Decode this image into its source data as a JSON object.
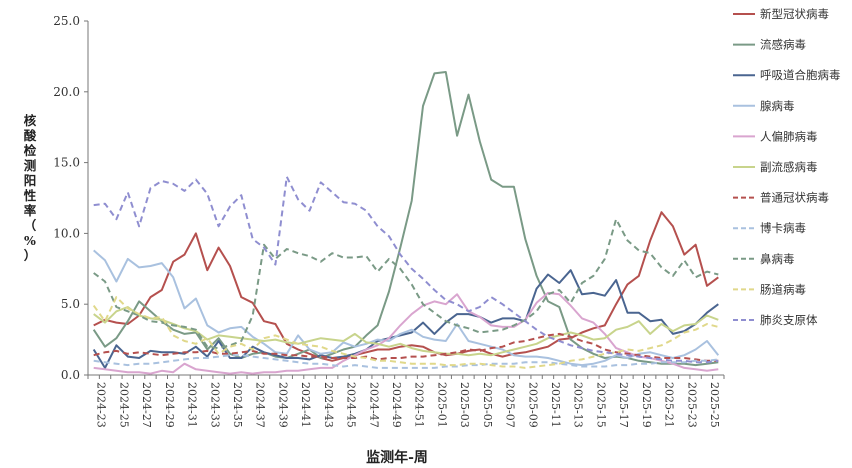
{
  "chart_data": {
    "type": "line",
    "xlabel": "监测年-周",
    "ylabel": "核酸检测阳性率（%）",
    "ylim": [
      0,
      25
    ],
    "yticks": [
      "0.0",
      "5.0",
      "10.0",
      "15.0",
      "20.0",
      "25.0"
    ],
    "grid": false,
    "legend_position": "right",
    "categories": [
      "2024-23",
      "2024-24",
      "2024-25",
      "2024-26",
      "2024-27",
      "2024-28",
      "2024-29",
      "2024-30",
      "2024-31",
      "2024-32",
      "2024-33",
      "2024-34",
      "2024-35",
      "2024-36",
      "2024-37",
      "2024-38",
      "2024-39",
      "2024-40",
      "2024-41",
      "2024-42",
      "2024-43",
      "2024-44",
      "2024-45",
      "2024-46",
      "2024-47",
      "2024-48",
      "2024-49",
      "2024-50",
      "2024-51",
      "2024-52",
      "2025-01",
      "2025-02",
      "2025-03",
      "2025-04",
      "2025-05",
      "2025-06",
      "2025-07",
      "2025-08",
      "2025-09",
      "2025-10",
      "2025-11",
      "2025-12",
      "2025-13",
      "2025-14",
      "2025-15",
      "2025-16",
      "2025-17",
      "2025-18",
      "2025-19",
      "2025-20",
      "2025-21",
      "2025-22",
      "2025-23",
      "2025-24",
      "2025-25",
      "2025-26"
    ],
    "xtick_labels": [
      "2024-23",
      "2024-25",
      "2024-27",
      "2024-29",
      "2024-31",
      "2024-33",
      "2024-35",
      "2024-37",
      "2024-39",
      "2024-41",
      "2024-43",
      "2024-45",
      "2024-47",
      "2024-49",
      "2024-51",
      "2025-01",
      "2025-03",
      "2025-05",
      "2025-07",
      "2025-09",
      "2025-11",
      "2025-13",
      "2025-15",
      "2025-17",
      "2025-19",
      "2025-21",
      "2025-23",
      "2025-25"
    ],
    "series": [
      {
        "name": "新型冠状病毒",
        "color": "#b5504e",
        "dash": "solid",
        "values": [
          3.5,
          3.9,
          3.7,
          3.6,
          4.2,
          5.5,
          6.0,
          8.0,
          8.5,
          10.0,
          7.4,
          9.0,
          7.7,
          5.5,
          5.1,
          3.8,
          3.6,
          2.2,
          1.8,
          1.5,
          1.2,
          1.0,
          1.2,
          1.4,
          1.6,
          1.8,
          1.8,
          2.0,
          2.1,
          2.0,
          1.6,
          1.4,
          1.5,
          1.7,
          1.8,
          1.5,
          1.3,
          1.5,
          1.6,
          1.8,
          2.0,
          2.5,
          2.6,
          3.0,
          3.3,
          3.5,
          5.0,
          6.4,
          7.0,
          9.5,
          11.5,
          10.5,
          8.5,
          9.2,
          6.3,
          6.9
        ]
      },
      {
        "name": "流感病毒",
        "color": "#7a9a86",
        "dash": "solid",
        "values": [
          3.2,
          2.0,
          2.6,
          3.8,
          5.2,
          4.5,
          3.8,
          3.2,
          2.9,
          3.0,
          1.8,
          2.6,
          1.5,
          1.2,
          1.5,
          1.6,
          1.3,
          1.2,
          1.5,
          1.8,
          1.2,
          1.5,
          1.8,
          2.0,
          2.8,
          3.5,
          5.9,
          9.0,
          12.3,
          19.0,
          21.3,
          21.4,
          16.9,
          19.8,
          16.5,
          13.8,
          13.3,
          13.3,
          9.6,
          7.0,
          5.2,
          4.8,
          2.5,
          1.9,
          1.5,
          1.2,
          1.3,
          1.2,
          1.0,
          0.9,
          0.8,
          0.8,
          0.8,
          0.7,
          0.8,
          0.9
        ]
      },
      {
        "name": "呼吸道合胞病毒",
        "color": "#4a6590",
        "dash": "solid",
        "values": [
          1.8,
          0.5,
          2.1,
          1.3,
          1.2,
          1.7,
          1.6,
          1.6,
          1.5,
          2.0,
          1.3,
          2.4,
          1.2,
          1.2,
          2.0,
          1.6,
          1.4,
          1.2,
          1.2,
          1.1,
          1.4,
          1.2,
          1.3,
          1.5,
          1.8,
          2.4,
          2.6,
          2.8,
          3.0,
          3.7,
          2.9,
          3.7,
          4.3,
          4.3,
          4.1,
          3.7,
          4.0,
          4.0,
          3.8,
          6.1,
          7.1,
          6.5,
          7.4,
          5.7,
          5.8,
          5.6,
          6.7,
          4.4,
          4.4,
          3.8,
          3.9,
          2.9,
          3.1,
          3.6,
          4.4,
          5.0
        ]
      },
      {
        "name": "腺病毒",
        "color": "#a9c1df",
        "dash": "solid",
        "values": [
          8.8,
          8.1,
          6.6,
          8.2,
          7.6,
          7.7,
          7.9,
          6.9,
          4.7,
          5.4,
          3.5,
          3.0,
          3.3,
          3.4,
          2.7,
          2.2,
          1.6,
          1.5,
          2.8,
          1.8,
          1.5,
          1.6,
          2.3,
          2.0,
          2.2,
          2.5,
          2.4,
          2.9,
          3.2,
          2.7,
          2.5,
          2.4,
          3.6,
          2.4,
          2.2,
          2.0,
          1.8,
          1.4,
          1.3,
          1.3,
          1.2,
          1.0,
          0.8,
          0.7,
          0.8,
          1.0,
          1.4,
          1.2,
          1.5,
          1.6,
          1.4,
          1.2,
          1.4,
          1.8,
          2.4,
          1.4
        ]
      },
      {
        "name": "人偏肺病毒",
        "color": "#d9a5cf",
        "dash": "solid",
        "values": [
          0.5,
          0.4,
          0.3,
          0.2,
          0.2,
          0.1,
          0.3,
          0.2,
          0.8,
          0.4,
          0.3,
          0.2,
          0.1,
          0.2,
          0.1,
          0.2,
          0.2,
          0.3,
          0.3,
          0.4,
          0.5,
          0.5,
          1.0,
          1.4,
          1.8,
          2.1,
          2.6,
          3.5,
          4.3,
          4.9,
          5.2,
          5.0,
          5.7,
          4.5,
          4.1,
          3.5,
          3.4,
          3.4,
          3.9,
          5.1,
          5.8,
          5.7,
          4.9,
          4.0,
          3.7,
          2.9,
          1.9,
          1.6,
          1.3,
          1.2,
          1.0,
          0.8,
          0.5,
          0.4,
          0.3,
          0.4
        ]
      },
      {
        "name": "副流感病毒",
        "color": "#c8d48c",
        "dash": "solid",
        "values": [
          4.3,
          3.7,
          4.5,
          4.8,
          4.2,
          4.0,
          3.9,
          3.6,
          3.3,
          3.1,
          2.5,
          2.8,
          2.7,
          2.6,
          2.5,
          2.4,
          2.5,
          2.3,
          2.2,
          2.4,
          2.6,
          2.5,
          2.4,
          2.9,
          2.3,
          2.2,
          2.0,
          2.2,
          1.9,
          1.7,
          1.6,
          1.5,
          1.5,
          1.4,
          1.5,
          1.4,
          1.6,
          1.8,
          2.0,
          2.2,
          2.6,
          2.8,
          3.0,
          2.8,
          2.5,
          2.6,
          3.2,
          3.4,
          3.8,
          2.9,
          3.6,
          3.1,
          3.5,
          3.6,
          4.2,
          3.9
        ]
      },
      {
        "name": "普通冠状病毒",
        "color": "#b5504e",
        "dash": "dashed",
        "values": [
          1.4,
          1.6,
          1.7,
          1.5,
          1.6,
          1.5,
          1.4,
          1.5,
          1.6,
          1.6,
          1.7,
          1.5,
          1.5,
          1.6,
          1.7,
          1.5,
          1.5,
          1.4,
          1.4,
          1.3,
          1.3,
          1.2,
          1.2,
          1.2,
          1.3,
          1.1,
          1.2,
          1.2,
          1.3,
          1.3,
          1.4,
          1.5,
          1.6,
          1.8,
          1.7,
          1.9,
          2.0,
          2.3,
          2.4,
          2.6,
          2.8,
          2.9,
          2.7,
          2.4,
          2.2,
          1.8,
          1.6,
          1.5,
          1.4,
          1.3,
          1.2,
          1.2,
          1.2,
          1.1,
          1.0,
          1.0
        ]
      },
      {
        "name": "博卡病毒",
        "color": "#a9c1df",
        "dash": "dashed",
        "values": [
          1.0,
          0.9,
          0.8,
          0.7,
          0.8,
          0.8,
          0.9,
          1.0,
          1.1,
          1.2,
          1.2,
          1.3,
          1.4,
          1.4,
          1.3,
          1.2,
          1.1,
          1.0,
          0.9,
          0.8,
          0.8,
          0.7,
          0.6,
          0.7,
          0.6,
          0.5,
          0.5,
          0.5,
          0.5,
          0.5,
          0.5,
          0.6,
          0.6,
          0.7,
          0.7,
          0.8,
          0.8,
          0.8,
          0.9,
          0.9,
          0.9,
          0.8,
          0.7,
          0.6,
          0.6,
          0.6,
          0.7,
          0.7,
          0.8,
          0.8,
          0.9,
          0.9,
          0.9,
          1.0,
          1.0,
          1.1
        ]
      },
      {
        "name": "鼻病毒",
        "color": "#7a9a86",
        "dash": "dashed",
        "values": [
          7.2,
          6.6,
          4.8,
          4.5,
          4.2,
          3.8,
          3.7,
          3.5,
          3.4,
          3.2,
          2.0,
          1.9,
          2.1,
          2.4,
          4.2,
          9.2,
          8.2,
          8.9,
          8.6,
          8.4,
          8.0,
          8.6,
          8.3,
          8.3,
          8.4,
          7.3,
          8.2,
          7.5,
          6.4,
          5.0,
          4.4,
          3.8,
          3.5,
          3.3,
          3.0,
          3.1,
          3.2,
          3.5,
          3.9,
          4.5,
          5.7,
          6.0,
          5.1,
          6.5,
          7.0,
          8.2,
          11.0,
          9.5,
          8.8,
          8.6,
          7.6,
          7.0,
          8.1,
          6.9,
          7.3,
          7.1
        ]
      },
      {
        "name": "肠道病毒",
        "color": "#e0d88a",
        "dash": "dashed",
        "values": [
          4.9,
          3.8,
          5.5,
          4.7,
          4.3,
          4.0,
          4.1,
          2.8,
          2.4,
          2.2,
          2.6,
          1.5,
          2.0,
          2.2,
          1.8,
          2.6,
          2.8,
          2.5,
          2.2,
          2.1,
          2.0,
          1.7,
          1.5,
          1.3,
          1.2,
          1.0,
          1.0,
          0.9,
          0.8,
          0.8,
          0.8,
          0.7,
          0.7,
          0.8,
          0.8,
          0.7,
          0.6,
          0.6,
          0.5,
          0.6,
          0.7,
          0.8,
          1.0,
          1.1,
          1.3,
          1.5,
          1.6,
          1.8,
          1.7,
          1.9,
          2.1,
          2.5,
          3.0,
          3.2,
          3.6,
          3.4
        ]
      },
      {
        "name": "肺炎支原体",
        "color": "#8f8ed0",
        "dash": "dashed",
        "values": [
          12.0,
          12.1,
          11.0,
          12.9,
          10.5,
          13.2,
          13.7,
          13.5,
          13.0,
          13.8,
          12.8,
          10.5,
          11.9,
          12.7,
          9.6,
          9.0,
          7.8,
          14.0,
          12.4,
          11.6,
          13.6,
          12.9,
          12.2,
          12.1,
          11.6,
          10.5,
          9.8,
          8.5,
          7.5,
          6.8,
          6.0,
          5.3,
          5.0,
          4.5,
          4.8,
          5.5,
          5.0,
          4.4,
          3.8,
          3.2,
          2.7,
          2.4,
          2.1,
          1.9,
          1.7,
          1.6,
          1.5,
          1.4,
          1.3,
          1.2,
          1.1,
          1.0,
          1.0,
          0.9,
          0.9,
          1.0
        ]
      }
    ]
  }
}
